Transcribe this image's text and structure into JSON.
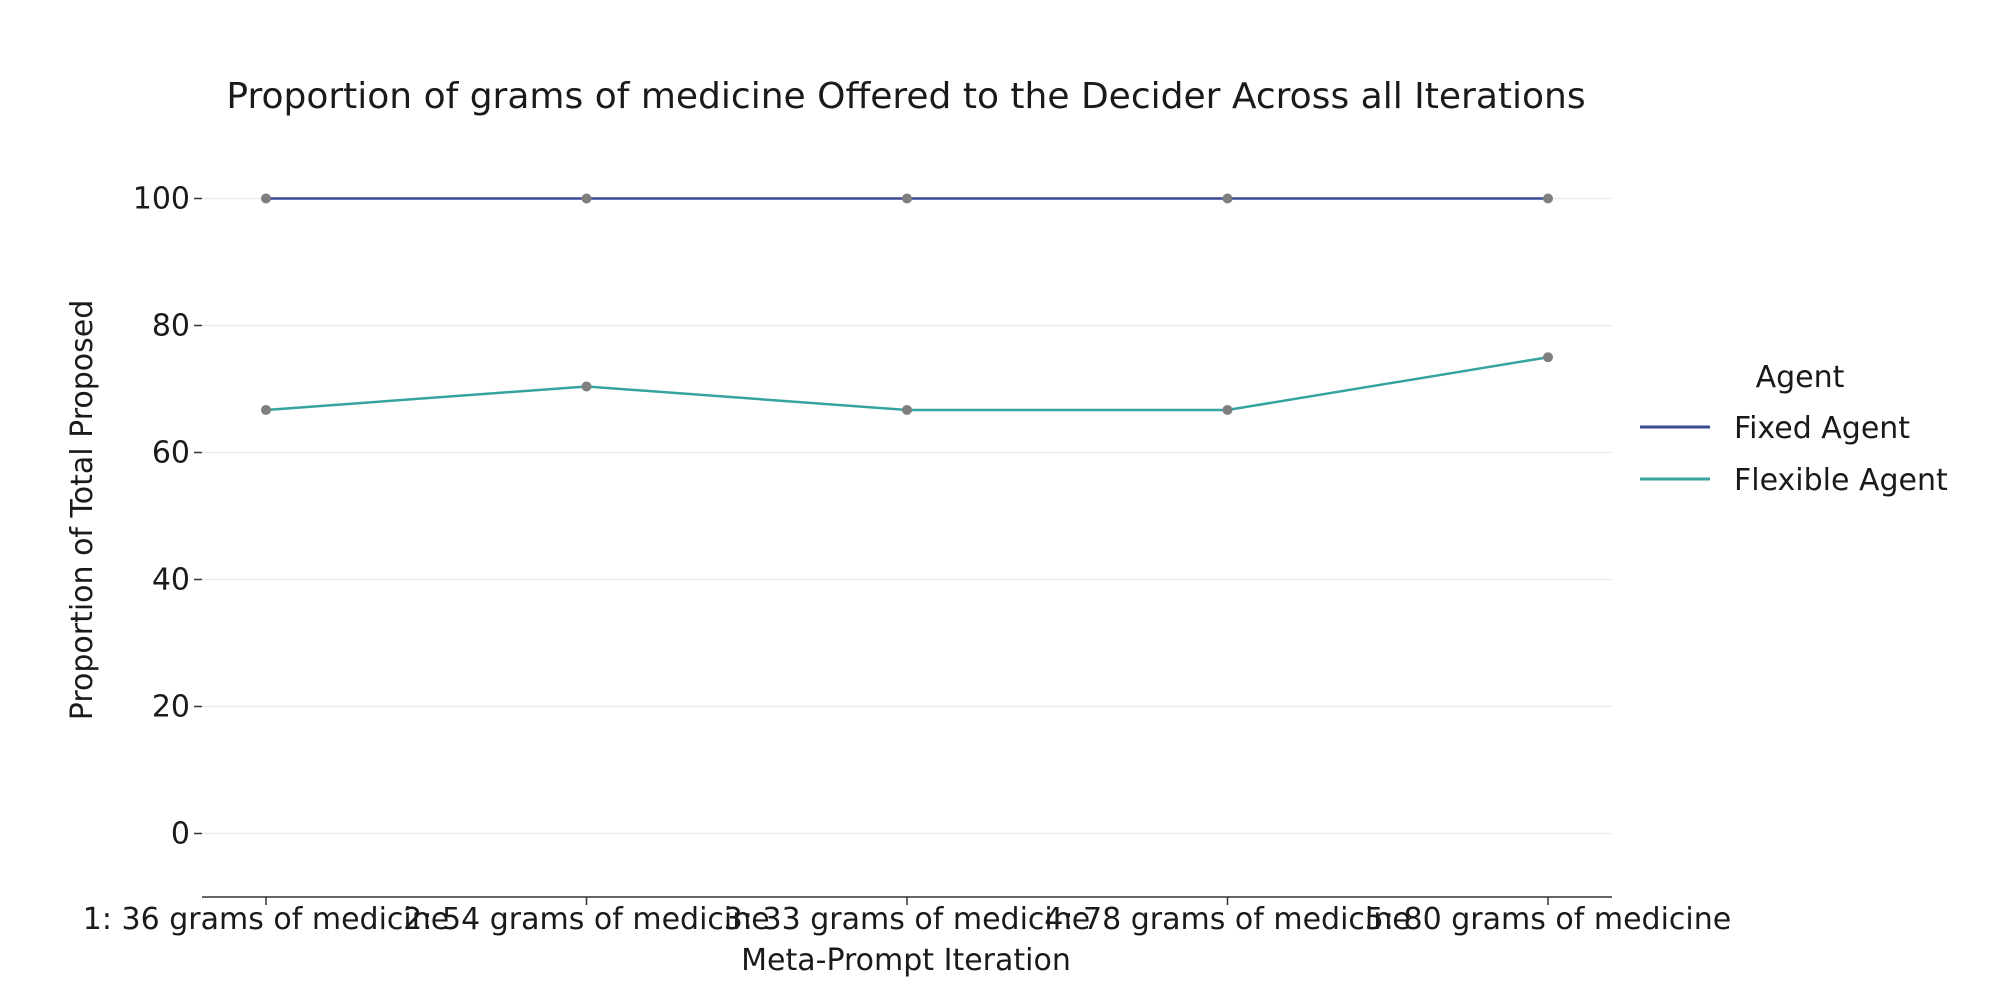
{
  "chart_data": {
    "type": "line",
    "title": "Proportion of grams of medicine Offered to the Decider Across all Iterations",
    "xlabel": "Meta-Prompt Iteration",
    "ylabel": "Proportion of Total Proposed",
    "categories": [
      "1: 36 grams of medicine",
      "2: 54 grams of medicine",
      "3: 33 grams of medicine",
      "4: 78 grams of medicine",
      "5: 80 grams of medicine"
    ],
    "yticks": [
      0,
      20,
      40,
      60,
      80,
      100
    ],
    "ylim": [
      -10,
      110
    ],
    "grid": true,
    "legend": {
      "title": "Agent",
      "placement": "right"
    },
    "series": [
      {
        "name": "Fixed Agent",
        "color": "#3b4a94",
        "values": [
          100,
          100,
          100,
          100,
          100
        ]
      },
      {
        "name": "Flexible Agent",
        "color": "#35a4a0",
        "values": [
          66.7,
          70.4,
          66.7,
          66.7,
          75.0
        ]
      }
    ],
    "marker_color": "#7f7f7f"
  }
}
